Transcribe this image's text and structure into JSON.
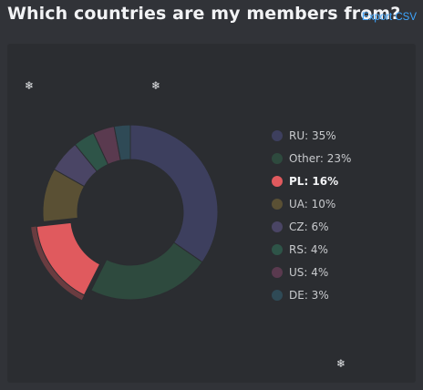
{
  "header": {
    "title": "Which countries are my members from?",
    "export_label": "Export CSV"
  },
  "decorations": [
    "snowflake-icon",
    "snowflake-icon",
    "snowflake-icon"
  ],
  "chart_data": {
    "type": "pie",
    "variant": "donut",
    "categories": [
      "RU",
      "Other",
      "PL",
      "UA",
      "CZ",
      "RS",
      "US",
      "DE"
    ],
    "values": [
      35,
      23,
      16,
      10,
      6,
      4,
      4,
      3
    ],
    "legend_labels": [
      "RU: 35%",
      "Other: 23%",
      "PL: 16%",
      "UA: 10%",
      "CZ: 6%",
      "RS: 4%",
      "US: 4%",
      "DE: 3%"
    ],
    "colors": [
      "#3d3f5e",
      "#2e4a3e",
      "#e05a5e",
      "#5a5034",
      "#4a4565",
      "#2e5448",
      "#5a3a4f",
      "#2f4a56"
    ],
    "highlighted": "PL",
    "legend_position": "right",
    "title": "Which countries are my members from?"
  }
}
